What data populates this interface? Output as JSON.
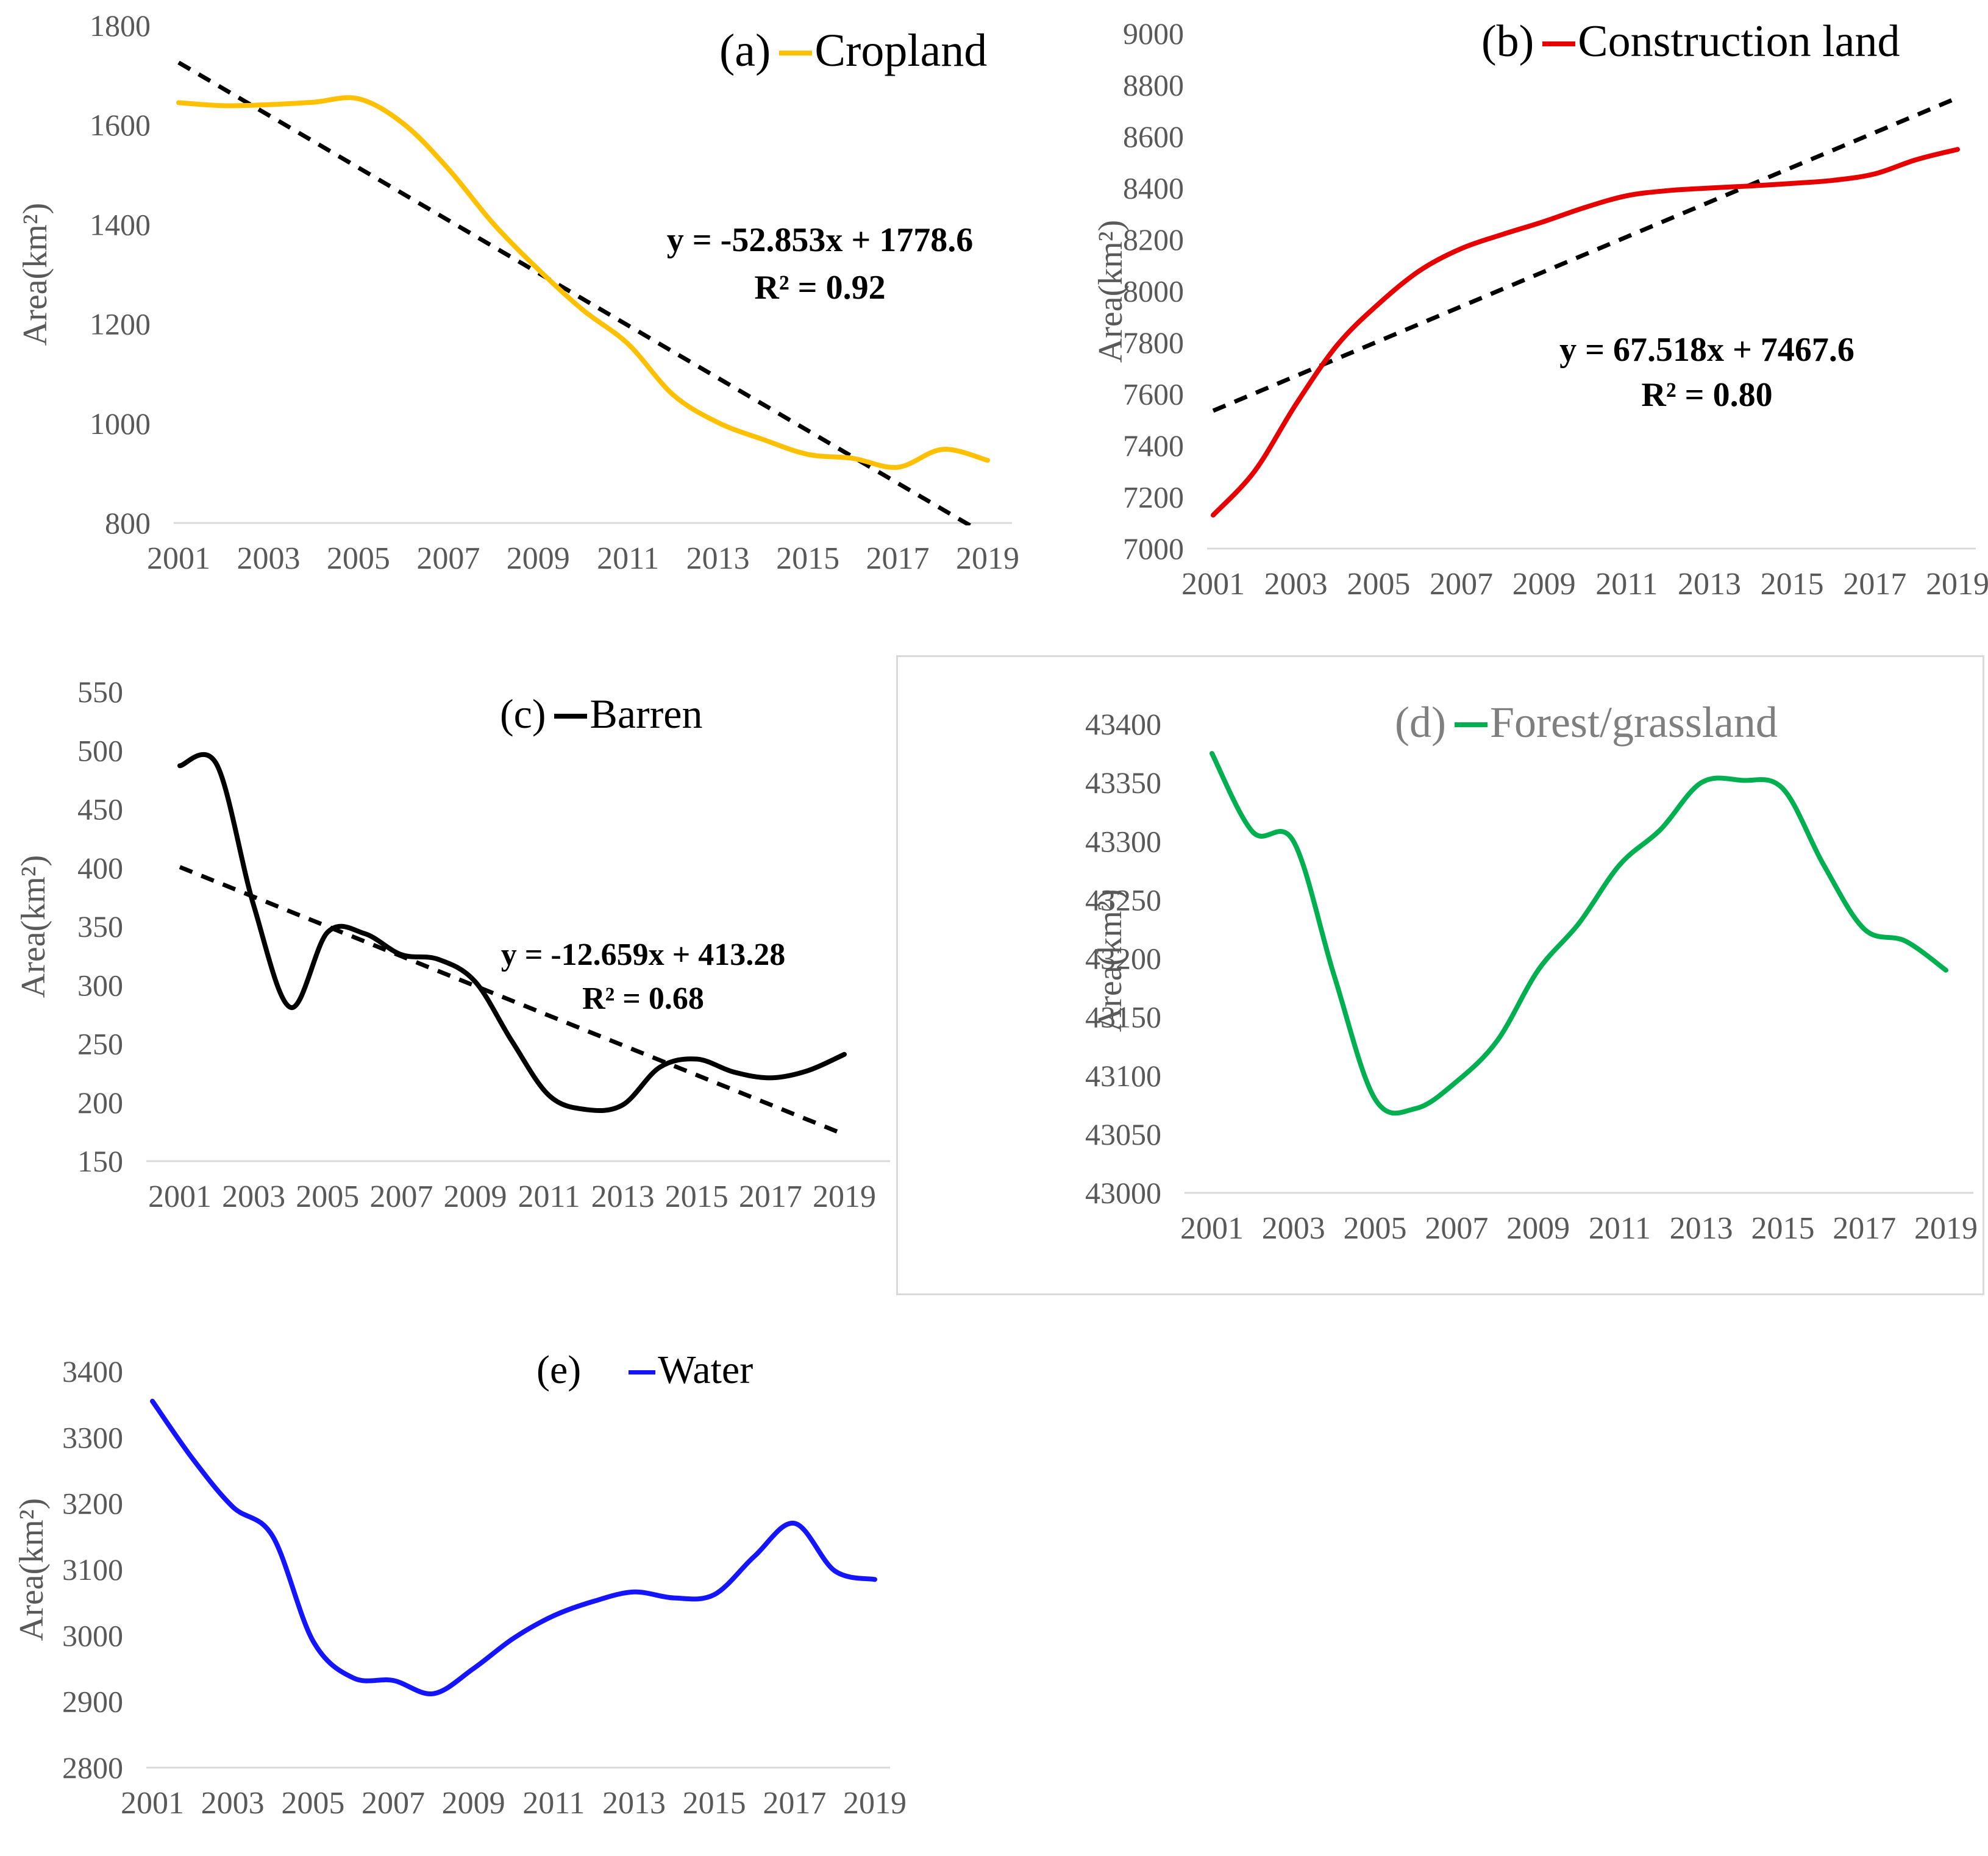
{
  "figure": {
    "colors": {
      "tick_text": "#595959",
      "axis_line": "#d9d9d9",
      "trendline": "#000000",
      "cropland": "#FFC000",
      "construction": "#E60000",
      "barren": "#000000",
      "forest_grassland": "#00B050",
      "water": "#1414FF",
      "forest_title_gray": "#7f7f7f"
    }
  },
  "chart_data": [
    {
      "id": "a",
      "type": "line",
      "panel_label": "(a)",
      "legend_label": "Cropland",
      "line_color": "#FFC000",
      "title_color": "#000000",
      "ylabel": "Area(km²)",
      "xlabel": "",
      "years": [
        2001,
        2002,
        2003,
        2004,
        2005,
        2006,
        2007,
        2008,
        2009,
        2010,
        2011,
        2012,
        2013,
        2014,
        2015,
        2016,
        2017,
        2018,
        2019
      ],
      "x_tick_labels": [
        "2001",
        "2003",
        "2005",
        "2007",
        "2009",
        "2011",
        "2013",
        "2015",
        "2017",
        "2019"
      ],
      "values": [
        1645,
        1639,
        1641,
        1646,
        1653,
        1603,
        1512,
        1402,
        1310,
        1228,
        1160,
        1058,
        1002,
        968,
        938,
        930,
        912,
        948,
        926
      ],
      "ylim": [
        800,
        1800
      ],
      "ytick_step": 200,
      "grid": false,
      "legend_position": "top-right",
      "trendline": {
        "slope": -52.853,
        "intercept": 1778.6,
        "style": "dashed",
        "color": "#000000",
        "equation": "y = -52.853x + 1778.6",
        "r2_label": "R² = 0.92"
      }
    },
    {
      "id": "b",
      "type": "line",
      "panel_label": "(b)",
      "legend_label": "Construction land",
      "line_color": "#E60000",
      "title_color": "#000000",
      "ylabel": "Area(km²)",
      "xlabel": "",
      "years": [
        2001,
        2002,
        2003,
        2004,
        2005,
        2006,
        2007,
        2008,
        2009,
        2010,
        2011,
        2012,
        2013,
        2014,
        2015,
        2016,
        2017,
        2018,
        2019
      ],
      "x_tick_labels": [
        "2001",
        "2003",
        "2005",
        "2007",
        "2009",
        "2011",
        "2013",
        "2015",
        "2017",
        "2019"
      ],
      "values": [
        7130,
        7300,
        7560,
        7790,
        7950,
        8080,
        8165,
        8220,
        8270,
        8325,
        8370,
        8390,
        8400,
        8408,
        8418,
        8430,
        8455,
        8510,
        8550
      ],
      "ylim": [
        7000,
        9000
      ],
      "ytick_step": 200,
      "grid": false,
      "legend_position": "top-right",
      "trendline": {
        "slope": 67.518,
        "intercept": 7467.6,
        "style": "dashed",
        "color": "#000000",
        "equation": "y = 67.518x + 7467.6",
        "r2_label": "R² = 0.80"
      }
    },
    {
      "id": "c",
      "type": "line",
      "panel_label": "(c)",
      "legend_label": "Barren",
      "line_color": "#000000",
      "title_color": "#000000",
      "ylabel": "Area(km²)",
      "xlabel": "",
      "years": [
        2001,
        2002,
        2003,
        2004,
        2005,
        2006,
        2007,
        2008,
        2009,
        2010,
        2011,
        2012,
        2013,
        2014,
        2015,
        2016,
        2017,
        2018,
        2019
      ],
      "x_tick_labels": [
        "2001",
        "2003",
        "2005",
        "2007",
        "2009",
        "2011",
        "2013",
        "2015",
        "2017",
        "2019"
      ],
      "values": [
        487,
        488,
        368,
        281,
        345,
        344,
        326,
        322,
        303,
        252,
        206,
        194,
        198,
        230,
        237,
        226,
        221,
        227,
        241
      ],
      "ylim": [
        150,
        550
      ],
      "ytick_step": 50,
      "grid": false,
      "legend_position": "top-center",
      "trendline": {
        "slope": -12.659,
        "intercept": 413.28,
        "style": "dashed",
        "color": "#000000",
        "equation": "y = -12.659x + 413.28",
        "r2_label": "R² = 0.68"
      }
    },
    {
      "id": "d",
      "type": "line",
      "panel_label": "(d)",
      "legend_label": "Forest/grassland",
      "line_color": "#00B050",
      "title_color": "#7f7f7f",
      "ylabel": "Area(km²)",
      "xlabel": "",
      "years": [
        2001,
        2002,
        2003,
        2004,
        2005,
        2006,
        2007,
        2008,
        2009,
        2010,
        2011,
        2012,
        2013,
        2014,
        2015,
        2016,
        2017,
        2018,
        2019
      ],
      "x_tick_labels": [
        "2001",
        "2003",
        "2005",
        "2007",
        "2009",
        "2011",
        "2013",
        "2015",
        "2017",
        "2019"
      ],
      "values": [
        43375,
        43308,
        43300,
        43185,
        43080,
        43072,
        43095,
        43130,
        43190,
        43230,
        43280,
        43310,
        43350,
        43352,
        43345,
        43280,
        43225,
        43215,
        43190
      ],
      "ylim": [
        43000,
        43400
      ],
      "ytick_step": 50,
      "grid": false,
      "legend_position": "top-right",
      "trendline": null
    },
    {
      "id": "e",
      "type": "line",
      "panel_label": "(e)",
      "legend_label": "Water",
      "line_color": "#1414FF",
      "title_color": "#000000",
      "ylabel": "Area(km²)",
      "xlabel": "",
      "years": [
        2001,
        2002,
        2003,
        2004,
        2005,
        2006,
        2007,
        2008,
        2009,
        2010,
        2011,
        2012,
        2013,
        2014,
        2015,
        2016,
        2017,
        2018,
        2019
      ],
      "x_tick_labels": [
        "2001",
        "2003",
        "2005",
        "2007",
        "2009",
        "2011",
        "2013",
        "2015",
        "2017",
        "2019"
      ],
      "values": [
        3355,
        3268,
        3195,
        3150,
        2992,
        2936,
        2932,
        2912,
        2950,
        2996,
        3030,
        3052,
        3066,
        3057,
        3062,
        3120,
        3170,
        3098,
        3085
      ],
      "ylim": [
        2800,
        3400
      ],
      "ytick_step": 100,
      "grid": false,
      "legend_position": "top-center",
      "trendline": null
    }
  ]
}
